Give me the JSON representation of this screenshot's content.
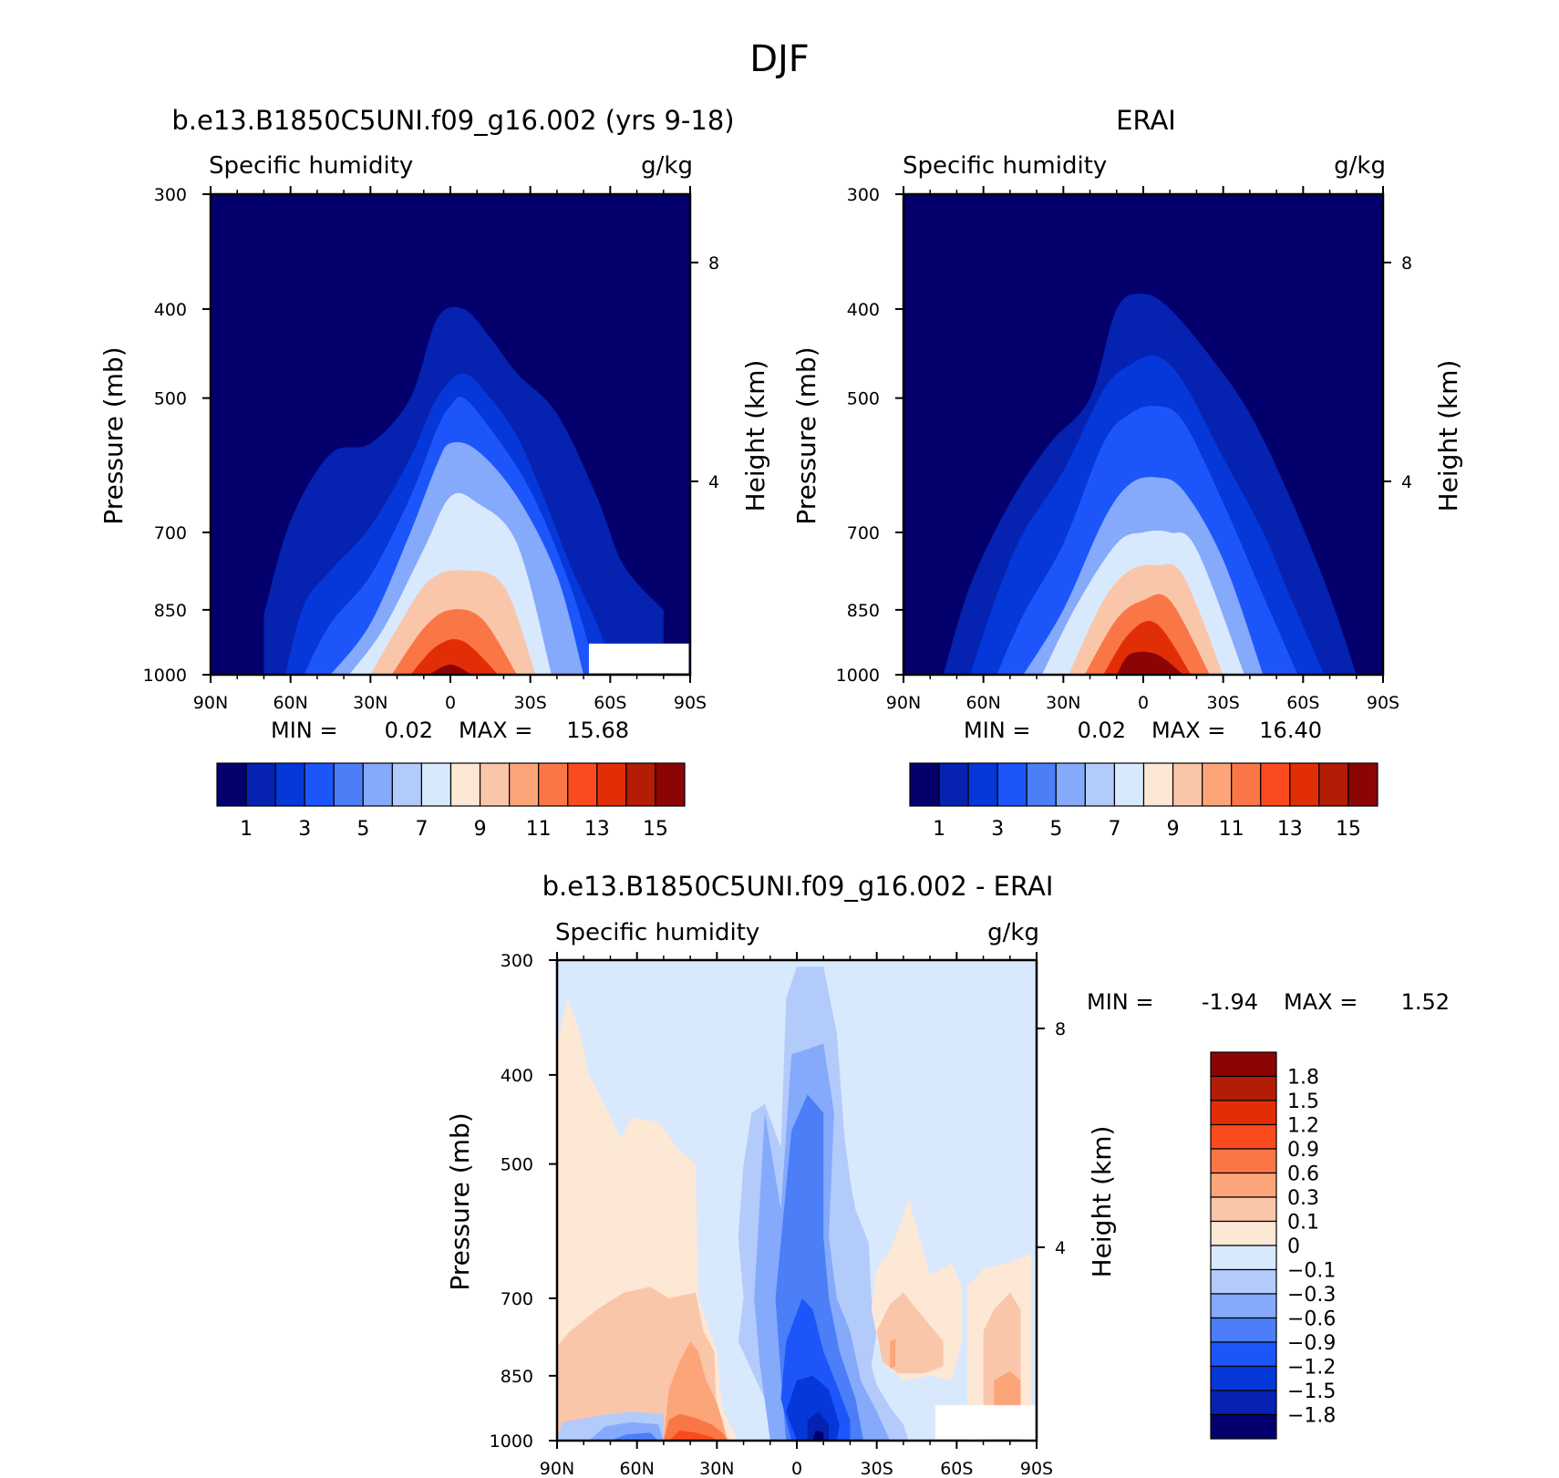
{
  "figure_title": "DJF",
  "chart_data": [
    {
      "type": "heatmap",
      "panel": "model",
      "title": "b.e13.B1850C5UNI.f09_g16.002 (yrs 9-18)",
      "variable": "Specific humidity",
      "units": "g/kg",
      "ylabel": "Pressure (mb)",
      "ylabel_right": "Height (km)",
      "x_ticklabels": [
        "90N",
        "60N",
        "30N",
        "0",
        "30S",
        "60S",
        "90S"
      ],
      "y_ticklabels": [
        "300",
        "400",
        "500",
        "700",
        "850",
        "1000"
      ],
      "y_right_ticklabels": [
        "8",
        "4"
      ],
      "xlim": [
        90,
        -90
      ],
      "ylim": [
        1000,
        300
      ],
      "y_scale": "log",
      "min_label": "MIN =",
      "min": "0.02",
      "max_label": "MAX =",
      "max": "15.68",
      "colorbar_labels": [
        "1",
        "3",
        "5",
        "7",
        "9",
        "11",
        "13",
        "15"
      ],
      "levels": [
        1,
        2,
        3,
        4,
        5,
        6,
        7,
        8,
        9,
        10,
        11,
        12,
        13,
        14,
        15
      ],
      "contours": [
        {
          "level": 1,
          "lat": [
            70,
            60,
            45,
            30,
            15,
            5,
            -5,
            -15,
            -25,
            -40,
            -55,
            -65,
            -80
          ],
          "top_mb": [
            860,
            680,
            575,
            560,
            500,
            410,
            400,
            430,
            470,
            520,
            640,
            760,
            850
          ]
        },
        {
          "level": 2,
          "lat": [
            62,
            55,
            45,
            30,
            15,
            5,
            -5,
            -15,
            -25,
            -35,
            -45,
            -55,
            -62
          ],
          "top_mb": [
            1000,
            840,
            770,
            690,
            580,
            500,
            470,
            500,
            550,
            640,
            760,
            880,
            1000
          ]
        },
        {
          "level": 3,
          "lat": [
            55,
            45,
            30,
            15,
            5,
            0,
            -5,
            -15,
            -30,
            -45,
            -55
          ],
          "top_mb": [
            1000,
            880,
            780,
            640,
            540,
            510,
            500,
            540,
            630,
            800,
            1000
          ]
        },
        {
          "level": 5,
          "lat": [
            45,
            30,
            15,
            5,
            0,
            -10,
            -25,
            -40,
            -50
          ],
          "top_mb": [
            1000,
            880,
            700,
            590,
            560,
            570,
            640,
            780,
            1000
          ]
        },
        {
          "level": 7,
          "lat": [
            38,
            25,
            10,
            0,
            -10,
            -25,
            -38
          ],
          "top_mb": [
            1000,
            890,
            730,
            640,
            650,
            720,
            1000
          ]
        },
        {
          "level": 9,
          "lat": [
            30,
            20,
            8,
            -5,
            -20,
            -32
          ],
          "top_mb": [
            1000,
            890,
            790,
            770,
            800,
            1000
          ]
        },
        {
          "level": 11,
          "lat": [
            22,
            10,
            0,
            -12,
            -25
          ],
          "top_mb": [
            1000,
            890,
            850,
            870,
            1000
          ]
        },
        {
          "level": 13,
          "lat": [
            15,
            5,
            -5,
            -18
          ],
          "top_mb": [
            1000,
            930,
            920,
            1000
          ]
        },
        {
          "level": 15,
          "lat": [
            8,
            0,
            -8
          ],
          "top_mb": [
            1000,
            975,
            1000
          ]
        }
      ],
      "masked_region": "white area at 60S-90S below about 930 mb"
    },
    {
      "type": "heatmap",
      "panel": "observations",
      "title": "ERAI",
      "variable": "Specific humidity",
      "units": "g/kg",
      "ylabel": "Pressure (mb)",
      "ylabel_right": "Height (km)",
      "x_ticklabels": [
        "90N",
        "60N",
        "30N",
        "0",
        "30S",
        "60S",
        "90S"
      ],
      "y_ticklabels": [
        "300",
        "400",
        "500",
        "700",
        "850",
        "1000"
      ],
      "y_right_ticklabels": [
        "8",
        "4"
      ],
      "xlim": [
        90,
        -90
      ],
      "ylim": [
        1000,
        300
      ],
      "y_scale": "log",
      "min_label": "MIN =",
      "min": "0.02",
      "max_label": "MAX =",
      "max": "16.40",
      "colorbar_labels": [
        "1",
        "3",
        "5",
        "7",
        "9",
        "11",
        "13",
        "15"
      ],
      "levels": [
        1,
        2,
        3,
        4,
        5,
        6,
        7,
        8,
        9,
        10,
        11,
        12,
        13,
        14,
        15
      ],
      "contours": [
        {
          "level": 1,
          "lat": [
            75,
            65,
            50,
            35,
            20,
            10,
            0,
            -10,
            -25,
            -40,
            -55,
            -70,
            -80
          ],
          "top_mb": [
            1000,
            800,
            650,
            560,
            500,
            400,
            385,
            400,
            450,
            520,
            640,
            820,
            1000
          ]
        },
        {
          "level": 2,
          "lat": [
            65,
            55,
            45,
            30,
            15,
            5,
            -5,
            -15,
            -30,
            -45,
            -55,
            -68
          ],
          "top_mb": [
            1000,
            820,
            700,
            600,
            490,
            460,
            450,
            480,
            580,
            700,
            820,
            1000
          ]
        },
        {
          "level": 3,
          "lat": [
            55,
            45,
            30,
            15,
            5,
            -5,
            -15,
            -30,
            -45,
            -58
          ],
          "top_mb": [
            1000,
            860,
            720,
            560,
            520,
            510,
            530,
            650,
            820,
            1000
          ]
        },
        {
          "level": 5,
          "lat": [
            45,
            30,
            15,
            5,
            -5,
            -15,
            -30,
            -45
          ],
          "top_mb": [
            1000,
            850,
            680,
            620,
            610,
            630,
            750,
            1000
          ]
        },
        {
          "level": 7,
          "lat": [
            38,
            25,
            10,
            0,
            -10,
            -20,
            -38
          ],
          "top_mb": [
            1000,
            840,
            720,
            700,
            700,
            730,
            1000
          ]
        },
        {
          "level": 9,
          "lat": [
            28,
            15,
            5,
            -5,
            -15,
            -30
          ],
          "top_mb": [
            1000,
            830,
            770,
            760,
            780,
            1000
          ]
        },
        {
          "level": 11,
          "lat": [
            22,
            10,
            0,
            -10,
            -25
          ],
          "top_mb": [
            1000,
            870,
            830,
            830,
            1000
          ]
        },
        {
          "level": 13,
          "lat": [
            15,
            5,
            -5,
            -18
          ],
          "top_mb": [
            1000,
            900,
            880,
            1000
          ]
        },
        {
          "level": 15,
          "lat": [
            10,
            5,
            -5,
            -15
          ],
          "top_mb": [
            1000,
            950,
            950,
            1000
          ]
        }
      ]
    },
    {
      "type": "heatmap",
      "panel": "difference",
      "title": "b.e13.B1850C5UNI.f09_g16.002 - ERAI",
      "variable": "Specific humidity",
      "units": "g/kg",
      "ylabel": "Pressure (mb)",
      "ylabel_right": "Height (km)",
      "x_ticklabels": [
        "90N",
        "60N",
        "30N",
        "0",
        "30S",
        "60S",
        "90S"
      ],
      "y_ticklabels": [
        "300",
        "400",
        "500",
        "700",
        "850",
        "1000"
      ],
      "y_right_ticklabels": [
        "8",
        "4"
      ],
      "xlim": [
        90,
        -90
      ],
      "ylim": [
        1000,
        300
      ],
      "y_scale": "log",
      "min_label": "MIN =",
      "min": "-1.94",
      "max_label": "MAX =",
      "max": "1.52",
      "colorbar_labels": [
        "1.8",
        "1.5",
        "1.2",
        "0.9",
        "0.6",
        "0.3",
        "0.1",
        "0",
        "-0.1",
        "-0.3",
        "-0.6",
        "-0.9",
        "-1.2",
        "-1.5",
        "-1.8"
      ],
      "levels": [
        -1.8,
        -1.5,
        -1.2,
        -0.9,
        -0.6,
        -0.3,
        -0.1,
        0,
        0.1,
        0.3,
        0.6,
        0.9,
        1.2,
        1.5,
        1.8
      ],
      "background_value": "-0.1 to 0",
      "features": [
        {
          "desc": "positive 0 to 0.1",
          "lat_range": [
            90,
            30
          ],
          "top_mb": 380
        },
        {
          "desc": "positive 0.1 to 0.3",
          "lat_range": [
            90,
            30
          ],
          "top_mb": 690
        },
        {
          "desc": "positive 0.3 to 1.2",
          "lat_range": [
            50,
            8
          ],
          "top_mb": 880
        },
        {
          "desc": "negative -0.1 to -1.9",
          "lat_range": [
            20,
            -30
          ],
          "top_mb": 310
        },
        {
          "desc": "positive 0 to 0.3",
          "lat_range": [
            -28,
            -55
          ],
          "top_mb": 560
        },
        {
          "desc": "positive 0 to 0.3",
          "lat_range": [
            -65,
            -88
          ],
          "top_mb": 630
        }
      ],
      "masked_region": "white area at 55S-90S below about 910 mb"
    }
  ],
  "palette": {
    "sequential": [
      "#03006e",
      "#0522b0",
      "#0537d9",
      "#1c56fb",
      "#4b7ef7",
      "#85a9fb",
      "#b3cbfb",
      "#d9e9fd",
      "#fde7d5",
      "#fac6aa",
      "#fba579",
      "#fb7646",
      "#fb4b1e",
      "#e22e07",
      "#b31d06",
      "#8c0505"
    ],
    "diverging": [
      "#03006e",
      "#0522b0",
      "#0537d9",
      "#1c56fb",
      "#4b7ef7",
      "#85a9fb",
      "#b3cbfb",
      "#d9e9fd",
      "#fde7d5",
      "#fac6aa",
      "#fba579",
      "#fb7646",
      "#fb4b1e",
      "#e22e07",
      "#b31d06",
      "#8c0505"
    ]
  }
}
